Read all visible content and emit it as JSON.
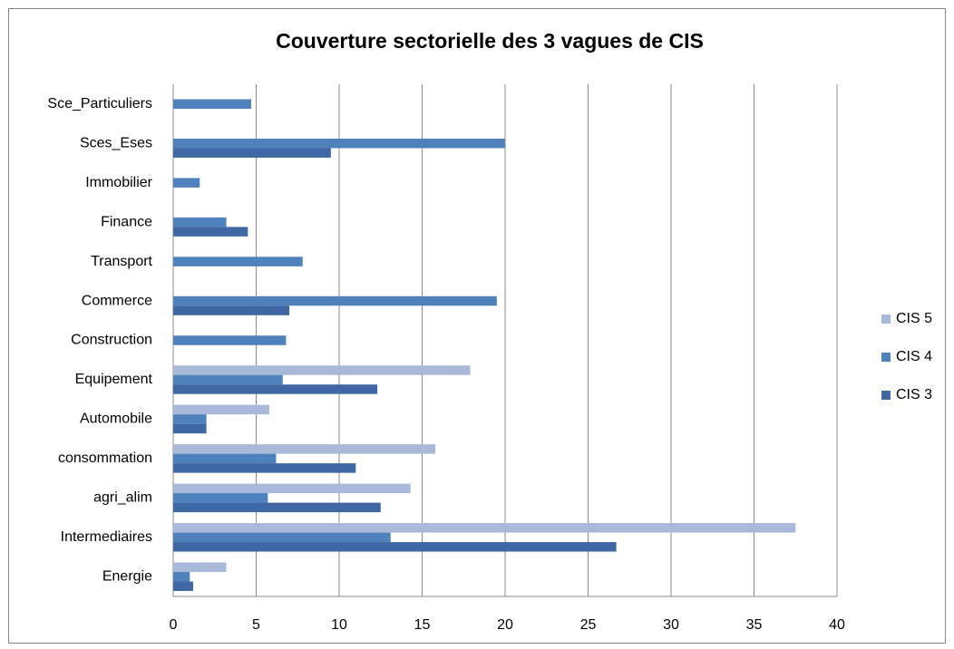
{
  "chart_data": {
    "type": "hbar",
    "title": "Couverture sectorielle des 3 vagues de CIS",
    "categories": [
      "Energie",
      "Intermediaires",
      "agri_alim",
      "consommation",
      "Automobile",
      "Equipement",
      "Construction",
      "Commerce",
      "Transport",
      "Finance",
      "Immobilier",
      "Sces_Eses",
      "Sce_Particuliers"
    ],
    "series": [
      {
        "name": "CIS 5",
        "color": "#a9b9d9",
        "values": [
          3.2,
          37.5,
          14.3,
          15.8,
          5.8,
          17.9,
          null,
          null,
          null,
          null,
          null,
          null,
          null
        ]
      },
      {
        "name": "CIS 4",
        "color": "#4f81bd",
        "values": [
          1.0,
          13.1,
          5.7,
          6.2,
          2.0,
          6.6,
          6.8,
          19.5,
          7.8,
          3.2,
          1.6,
          20.0,
          4.7
        ]
      },
      {
        "name": "CIS 3",
        "color": "#3f67a3",
        "values": [
          1.2,
          26.7,
          12.5,
          11.0,
          2.0,
          12.3,
          null,
          7.0,
          null,
          4.5,
          null,
          9.5,
          null
        ]
      }
    ],
    "xlim": [
      0,
      40
    ],
    "xticks": [
      0,
      5,
      10,
      15,
      20,
      25,
      30,
      35,
      40
    ],
    "grid": true,
    "legend": "right"
  }
}
